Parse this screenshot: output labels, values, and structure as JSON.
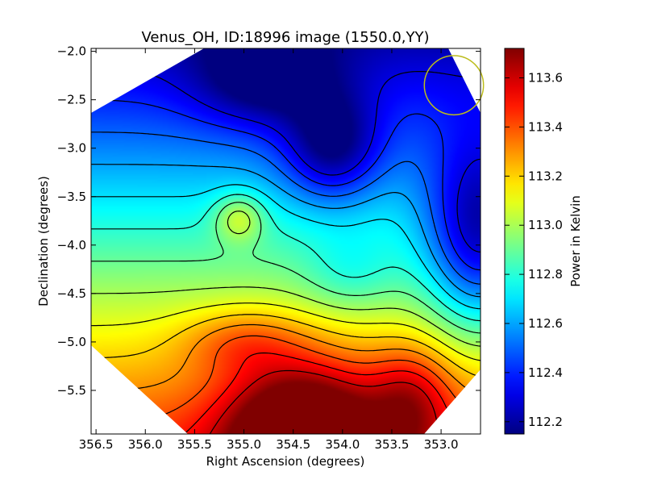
{
  "chart_data": {
    "type": "heatmap",
    "title": "Venus_OH, ID:18996 image (1550.0,YY)",
    "xlabel": "Right Ascension (degrees)",
    "ylabel": "Declination (degrees)",
    "xlim": [
      356.55,
      352.6
    ],
    "ylim": [
      -5.95,
      -1.97
    ],
    "x_ticks": [
      "356.5",
      "356.0",
      "355.5",
      "355.0",
      "354.5",
      "354.0",
      "353.5",
      "353.0"
    ],
    "x_tick_values": [
      356.5,
      356.0,
      355.5,
      355.0,
      354.5,
      354.0,
      353.5,
      353.0
    ],
    "y_ticks": [
      "−2.0",
      "−2.5",
      "−3.0",
      "−3.5",
      "−4.0",
      "−4.5",
      "−5.0",
      "−5.5"
    ],
    "y_tick_values": [
      -2.0,
      -2.5,
      -3.0,
      -3.5,
      -4.0,
      -4.5,
      -5.0,
      -5.5
    ],
    "colorbar": {
      "label": "Power in Kelvin",
      "range": [
        112.15,
        113.72
      ],
      "ticks": [
        "112.2",
        "112.4",
        "112.6",
        "112.8",
        "113.0",
        "113.2",
        "113.4",
        "113.6"
      ],
      "tick_values": [
        112.2,
        112.4,
        112.6,
        112.8,
        113.0,
        113.2,
        113.4,
        113.6
      ],
      "colormap": "jet"
    },
    "field": {
      "base": 112.85,
      "gradient_per_degree_dec": -0.3,
      "center_dec": -4.0,
      "features": [
        {
          "ra": 354.4,
          "dec": -5.95,
          "amp": 0.72,
          "sx": 0.55,
          "sy": 0.5
        },
        {
          "ra": 355.0,
          "dec": -5.0,
          "amp": 0.22,
          "sx": 0.45,
          "sy": 0.25
        },
        {
          "ra": 355.05,
          "dec": -3.72,
          "amp": 0.28,
          "sx": 0.18,
          "sy": 0.18
        },
        {
          "ra": 354.1,
          "dec": -3.0,
          "amp": -0.42,
          "sx": 0.35,
          "sy": 0.4
        },
        {
          "ra": 354.8,
          "dec": -2.3,
          "amp": -0.3,
          "sx": 0.5,
          "sy": 0.35
        },
        {
          "ra": 352.6,
          "dec": -3.95,
          "amp": -0.58,
          "sx": 0.4,
          "sy": 0.7
        },
        {
          "ra": 353.9,
          "dec": -4.3,
          "amp": -0.15,
          "sx": 0.35,
          "sy": 0.3
        },
        {
          "ra": 353.3,
          "dec": -5.6,
          "amp": 0.3,
          "sx": 0.3,
          "sy": 0.4
        }
      ]
    },
    "beam_circle": {
      "ra": 352.87,
      "dec": -2.35,
      "radius_deg": 0.3,
      "color": "#bcbc1c"
    },
    "contour_levels": [
      112.3,
      112.4,
      112.5,
      112.6,
      112.7,
      112.8,
      112.9,
      113.0,
      113.1,
      113.2,
      113.3,
      113.4,
      113.5,
      113.6
    ]
  }
}
